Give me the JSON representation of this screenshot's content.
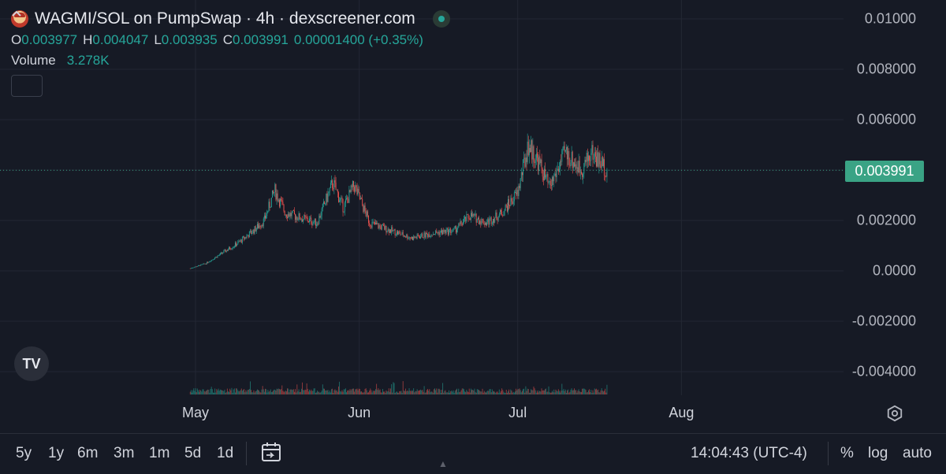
{
  "header": {
    "title": "WAGMI/SOL on PumpSwap · 4h · dexscreener.com",
    "ohlc": [
      {
        "key": "O",
        "value": "0.003977"
      },
      {
        "key": "H",
        "value": "0.004047"
      },
      {
        "key": "L",
        "value": "0.003935"
      },
      {
        "key": "C",
        "value": "0.003991"
      }
    ],
    "change": "0.00001400 (+0.35%)",
    "volume_label": "Volume",
    "volume_value": "3.278K",
    "collapse_icon": "chevron-up-icon"
  },
  "last_price": "0.003991",
  "bottom_bar": {
    "timeframes": [
      "5y",
      "1y",
      "6m",
      "3m",
      "1m",
      "5d",
      "1d"
    ],
    "time": "14:04:43 (UTC-4)",
    "percent": "%",
    "log": "log",
    "auto": "auto"
  },
  "colors": {
    "up": "#26a69a",
    "down": "#ef5350",
    "background": "#161a25",
    "last_price_bg": "#3aa385"
  },
  "chart_data": {
    "type": "candlestick",
    "interval": "4h",
    "price_axis_ticks": [
      "0.01000",
      "0.008000",
      "0.006000",
      "0.004000",
      "0.002000",
      "0.0000",
      "-0.002000",
      "-0.004000"
    ],
    "price_axis_values": [
      0.01,
      0.008,
      0.006,
      0.004,
      0.002,
      0.0,
      -0.002,
      -0.004
    ],
    "x_tick_labels": [
      "May",
      "Jun",
      "Jul",
      "Aug"
    ],
    "ylim": [
      -0.005,
      0.0105
    ],
    "grid": true,
    "last_close": 0.003991,
    "approx_close_path": [
      {
        "date": "2025-04-30",
        "close": 0.0001
      },
      {
        "date": "2025-05-03",
        "close": 0.0003
      },
      {
        "date": "2025-05-06",
        "close": 0.0007
      },
      {
        "date": "2025-05-09",
        "close": 0.0011
      },
      {
        "date": "2025-05-12",
        "close": 0.0016
      },
      {
        "date": "2025-05-14",
        "close": 0.002
      },
      {
        "date": "2025-05-16",
        "close": 0.0032
      },
      {
        "date": "2025-05-18",
        "close": 0.0023
      },
      {
        "date": "2025-05-21",
        "close": 0.0021
      },
      {
        "date": "2025-05-24",
        "close": 0.0019
      },
      {
        "date": "2025-05-27",
        "close": 0.0035
      },
      {
        "date": "2025-05-29",
        "close": 0.0025
      },
      {
        "date": "2025-05-31",
        "close": 0.0034
      },
      {
        "date": "2025-06-03",
        "close": 0.0019
      },
      {
        "date": "2025-06-07",
        "close": 0.0016
      },
      {
        "date": "2025-06-11",
        "close": 0.0013
      },
      {
        "date": "2025-06-15",
        "close": 0.0015
      },
      {
        "date": "2025-06-19",
        "close": 0.0016
      },
      {
        "date": "2025-06-22",
        "close": 0.0022
      },
      {
        "date": "2025-06-25",
        "close": 0.0019
      },
      {
        "date": "2025-06-28",
        "close": 0.0023
      },
      {
        "date": "2025-07-01",
        "close": 0.0031
      },
      {
        "date": "2025-07-03",
        "close": 0.005
      },
      {
        "date": "2025-07-05",
        "close": 0.0043
      },
      {
        "date": "2025-07-07",
        "close": 0.0033
      },
      {
        "date": "2025-07-10",
        "close": 0.0047
      },
      {
        "date": "2025-07-13",
        "close": 0.004
      },
      {
        "date": "2025-07-15",
        "close": 0.0047
      },
      {
        "date": "2025-07-18",
        "close": 0.004
      }
    ]
  }
}
